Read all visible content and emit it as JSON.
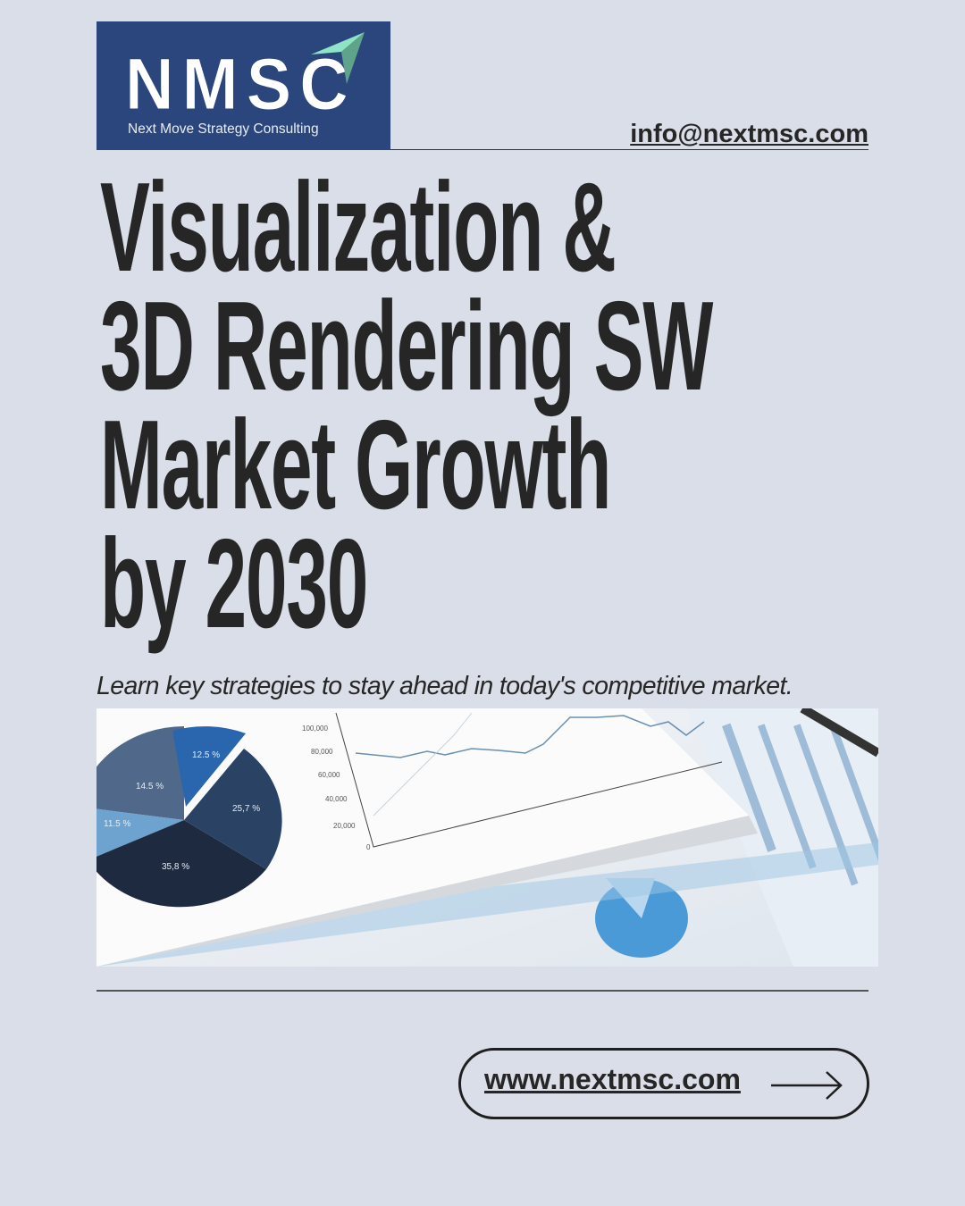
{
  "brand": {
    "logo_text": "NMSC",
    "tagline": "Next Move Strategy Consulting",
    "colors": {
      "logo_bg": "#2b467c",
      "arrow_light": "#8fe3c6",
      "arrow_dark": "#5fa48a"
    }
  },
  "contact": {
    "email": "info@nextmsc.com"
  },
  "headline": {
    "lines": [
      "Visualization &",
      "3D Rendering SW",
      "Market Growth",
      "by 2030"
    ]
  },
  "subtitle": "Learn key strategies to stay ahead in today's competitive market.",
  "photo": {
    "pie_labels": [
      "12.5 %",
      "14.5 %",
      "25,7 %",
      "11.5 %",
      "35,8 %"
    ],
    "axis_ticks": [
      "100,000",
      "80,000",
      "60,000",
      "40,000",
      "20,000",
      "0"
    ]
  },
  "cta": {
    "website": "www.nextmsc.com",
    "icon": "arrow-right-icon"
  }
}
